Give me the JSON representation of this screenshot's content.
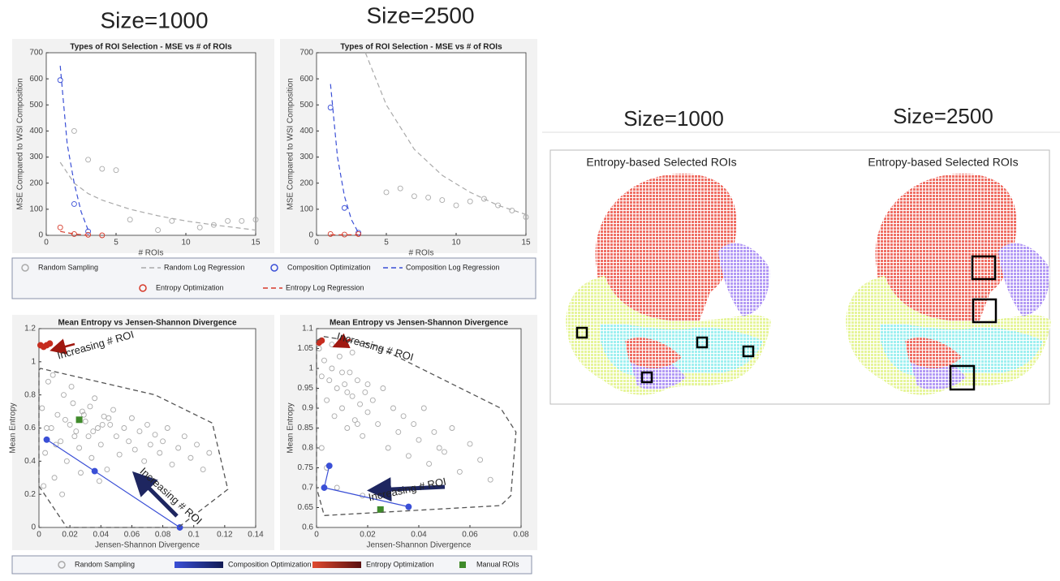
{
  "figure": {
    "left_headers": [
      "Size=1000",
      "Size=2500"
    ],
    "right_headers": [
      "Size=1000",
      "Size=2500"
    ],
    "map_titles": [
      "Entropy-based Selected ROIs",
      "Entropy-based Selected ROIs"
    ]
  },
  "chart_data": [
    {
      "type": "scatter",
      "title": "Types of ROI Selection - MSE vs # of ROIs",
      "xlabel": "# ROIs",
      "ylabel": "MSE Compared to WSI Composition",
      "xlim": [
        0,
        15
      ],
      "xticks": [
        0,
        5,
        10,
        15
      ],
      "ylim": [
        0,
        700
      ],
      "yticks": [
        0,
        100,
        200,
        300,
        400,
        500,
        600,
        700
      ],
      "series": [
        {
          "name": "Random Sampling",
          "color": "#aaaaaa",
          "style": "points",
          "x": [
            2,
            3,
            4,
            5,
            6,
            8,
            9,
            11,
            12,
            13,
            14,
            15
          ],
          "values": [
            400,
            290,
            255,
            250,
            60,
            20,
            55,
            30,
            40,
            55,
            55,
            60
          ]
        },
        {
          "name": "Random Log Regression",
          "color": "#aaaaaa",
          "style": "dashed",
          "x": [
            1,
            2,
            3,
            4,
            6,
            8,
            10,
            12,
            15
          ],
          "values": [
            280,
            200,
            160,
            135,
            100,
            75,
            55,
            40,
            20
          ]
        },
        {
          "name": "Composition Optimization",
          "color": "#3a4fd6",
          "style": "points",
          "x": [
            1,
            2,
            3
          ],
          "values": [
            595,
            120,
            15
          ]
        },
        {
          "name": "Composition Log Regression",
          "color": "#3a4fd6",
          "style": "dashed",
          "x": [
            1,
            1.5,
            2,
            2.5,
            3
          ],
          "values": [
            650,
            350,
            200,
            90,
            20
          ]
        },
        {
          "name": "Entropy Optimization",
          "color": "#d63a2a",
          "style": "points",
          "x": [
            1,
            2,
            3,
            4
          ],
          "values": [
            30,
            5,
            2,
            0
          ]
        },
        {
          "name": "Entropy Log Regression",
          "color": "#d63a2a",
          "style": "dashed",
          "x": [
            1,
            2,
            3
          ],
          "values": [
            15,
            5,
            0
          ]
        }
      ]
    },
    {
      "type": "scatter",
      "title": "Types of ROI Selection - MSE vs # of ROIs",
      "xlabel": "# ROIs",
      "ylabel": "MSE Compared to WSI Composition",
      "xlim": [
        0,
        15
      ],
      "xticks": [
        0,
        5,
        10,
        15
      ],
      "ylim": [
        0,
        700
      ],
      "yticks": [
        0,
        100,
        200,
        300,
        400,
        500,
        600,
        700
      ],
      "series": [
        {
          "color": "#aaaaaa",
          "style": "points",
          "x": [
            5,
            6,
            7,
            8,
            9,
            10,
            11,
            12,
            13,
            14,
            15
          ],
          "values": [
            165,
            180,
            150,
            145,
            135,
            115,
            130,
            140,
            115,
            95,
            70
          ]
        },
        {
          "color": "#aaaaaa",
          "style": "dashed",
          "x": [
            3.5,
            5,
            7,
            9,
            11,
            13,
            15
          ],
          "values": [
            700,
            500,
            330,
            230,
            165,
            115,
            80
          ]
        },
        {
          "color": "#3a4fd6",
          "style": "points",
          "x": [
            1,
            2,
            3
          ],
          "values": [
            490,
            105,
            10
          ]
        },
        {
          "color": "#3a4fd6",
          "style": "dashed",
          "x": [
            1,
            1.5,
            2,
            2.5,
            3
          ],
          "values": [
            580,
            300,
            150,
            60,
            10
          ]
        },
        {
          "color": "#d63a2a",
          "style": "points",
          "x": [
            1,
            2,
            3
          ],
          "values": [
            5,
            3,
            5
          ]
        },
        {
          "color": "#d63a2a",
          "style": "dashed",
          "x": [
            1,
            3
          ],
          "values": [
            2,
            2
          ]
        }
      ]
    },
    {
      "type": "scatter",
      "title": "Mean Entropy vs Jensen-Shannon Divergence",
      "xlabel": "Jensen-Shannon Divergence",
      "ylabel": "Mean Entropy",
      "xlim": [
        0,
        0.14
      ],
      "xticks": [
        0,
        0.02,
        0.04,
        0.06,
        0.08,
        0.1,
        0.12,
        0.14
      ],
      "ylim": [
        0,
        1.2
      ],
      "yticks": [
        0,
        0.2,
        0.4,
        0.6,
        0.8,
        1,
        1.2
      ],
      "annotations": [
        "Increasing # ROI",
        "Increasing # ROI"
      ],
      "series": [
        {
          "name": "Random Sampling",
          "color": "#aaaaaa",
          "style": "points",
          "x": [
            0.002,
            0.004,
            0.006,
            0.008,
            0.01,
            0.012,
            0.014,
            0.016,
            0.018,
            0.02,
            0.022,
            0.024,
            0.026,
            0.028,
            0.03,
            0.032,
            0.034,
            0.036,
            0.038,
            0.04,
            0.042,
            0.044,
            0.046,
            0.048,
            0.05,
            0.052,
            0.055,
            0.058,
            0.06,
            0.062,
            0.065,
            0.068,
            0.07,
            0.072,
            0.075,
            0.078,
            0.08,
            0.083,
            0.086,
            0.09,
            0.094,
            0.098,
            0.102,
            0.106,
            0.11,
            0.003,
            0.009,
            0.015,
            0.021,
            0.027,
            0.033,
            0.039,
            0.045,
            0.005,
            0.011,
            0.017,
            0.023,
            0.029,
            0.035,
            0.041
          ],
          "values": [
            0.72,
            0.45,
            0.88,
            0.6,
            0.3,
            0.68,
            0.52,
            0.8,
            0.4,
            0.62,
            0.75,
            0.58,
            0.48,
            0.7,
            0.64,
            0.55,
            0.42,
            0.78,
            0.6,
            0.5,
            0.67,
            0.35,
            0.62,
            0.71,
            0.55,
            0.44,
            0.6,
            0.52,
            0.66,
            0.47,
            0.58,
            0.4,
            0.62,
            0.5,
            0.56,
            0.45,
            0.52,
            0.6,
            0.38,
            0.48,
            0.55,
            0.42,
            0.5,
            0.35,
            0.45,
            0.25,
            0.92,
            0.2,
            0.85,
            0.33,
            0.73,
            0.28,
            0.66,
            0.6,
            0.5,
            0.65,
            0.55,
            0.68,
            0.58,
            0.62
          ]
        },
        {
          "name": "Composition Optimization",
          "color": "#3a4fd6",
          "style": "line-points",
          "x": [
            0.005,
            0.036,
            0.091
          ],
          "values": [
            0.53,
            0.34,
            0.0
          ]
        },
        {
          "name": "Entropy Optimization",
          "color": "#c62d1f",
          "style": "filled",
          "x": [
            0.001,
            0.003,
            0.005,
            0.007
          ],
          "values": [
            1.1,
            1.09,
            1.1,
            1.11
          ]
        },
        {
          "name": "Manual ROIs",
          "color": "#3f8a2a",
          "style": "square",
          "x": [
            0.026
          ],
          "values": [
            0.65
          ]
        },
        {
          "color": "#555555",
          "style": "hull",
          "x": [
            0,
            0.001,
            0.075,
            0.112,
            0.122,
            0.09,
            0.018,
            0
          ],
          "values": [
            0.95,
            0.96,
            0.8,
            0.63,
            0.23,
            0.0,
            0.0,
            0.25
          ]
        }
      ]
    },
    {
      "type": "scatter",
      "title": "Mean Entropy vs Jensen-Shannon Divergence",
      "xlabel": "Jensen-Shannon Divergence",
      "ylabel": "Mean Entropy",
      "xlim": [
        0,
        0.08
      ],
      "xticks": [
        0,
        0.02,
        0.04,
        0.06,
        0.08
      ],
      "ylim": [
        0.6,
        1.1
      ],
      "yticks": [
        0.6,
        0.65,
        0.7,
        0.75,
        0.8,
        0.85,
        0.9,
        0.95,
        1,
        1.05,
        1.1
      ],
      "annotations": [
        "Increasing # ROI",
        "Increasing # ROI"
      ],
      "series": [
        {
          "color": "#aaaaaa",
          "style": "points",
          "x": [
            0.001,
            0.002,
            0.003,
            0.004,
            0.005,
            0.006,
            0.007,
            0.008,
            0.009,
            0.01,
            0.011,
            0.012,
            0.013,
            0.014,
            0.015,
            0.016,
            0.017,
            0.018,
            0.019,
            0.02,
            0.022,
            0.024,
            0.026,
            0.028,
            0.03,
            0.032,
            0.034,
            0.036,
            0.038,
            0.04,
            0.042,
            0.044,
            0.046,
            0.048,
            0.05,
            0.053,
            0.056,
            0.06,
            0.064,
            0.068,
            0.002,
            0.004,
            0.006,
            0.008,
            0.01,
            0.012,
            0.014,
            0.016,
            0.018,
            0.02
          ],
          "values": [
            1.05,
            0.98,
            1.02,
            0.92,
            0.97,
            1.0,
            0.88,
            0.95,
            1.03,
            0.9,
            0.96,
            0.85,
            0.99,
            0.93,
            0.87,
            0.97,
            0.91,
            0.83,
            0.94,
            0.89,
            0.92,
            0.86,
            0.95,
            0.8,
            0.9,
            0.84,
            0.88,
            0.78,
            0.86,
            0.82,
            0.9,
            0.76,
            0.84,
            0.8,
            0.79,
            0.85,
            0.74,
            0.81,
            0.77,
            0.72,
            0.8,
            0.75,
            1.06,
            0.7,
            0.99,
            0.94,
            1.04,
            0.86,
            0.68,
            0.96
          ]
        },
        {
          "color": "#3a4fd6",
          "style": "line-points",
          "x": [
            0.005,
            0.003,
            0.036
          ],
          "values": [
            0.755,
            0.7,
            0.652
          ]
        },
        {
          "color": "#c62d1f",
          "style": "filled",
          "x": [
            0.001,
            0.002
          ],
          "values": [
            1.065,
            1.07
          ]
        },
        {
          "color": "#3f8a2a",
          "style": "square",
          "x": [
            0.025
          ],
          "values": [
            0.645
          ]
        },
        {
          "color": "#555555",
          "style": "hull",
          "x": [
            0,
            0.003,
            0.022,
            0.072,
            0.078,
            0.076,
            0.072,
            0.003,
            0
          ],
          "values": [
            1.07,
            1.08,
            1.06,
            0.9,
            0.84,
            0.68,
            0.655,
            0.63,
            0.7
          ]
        }
      ]
    }
  ]
}
